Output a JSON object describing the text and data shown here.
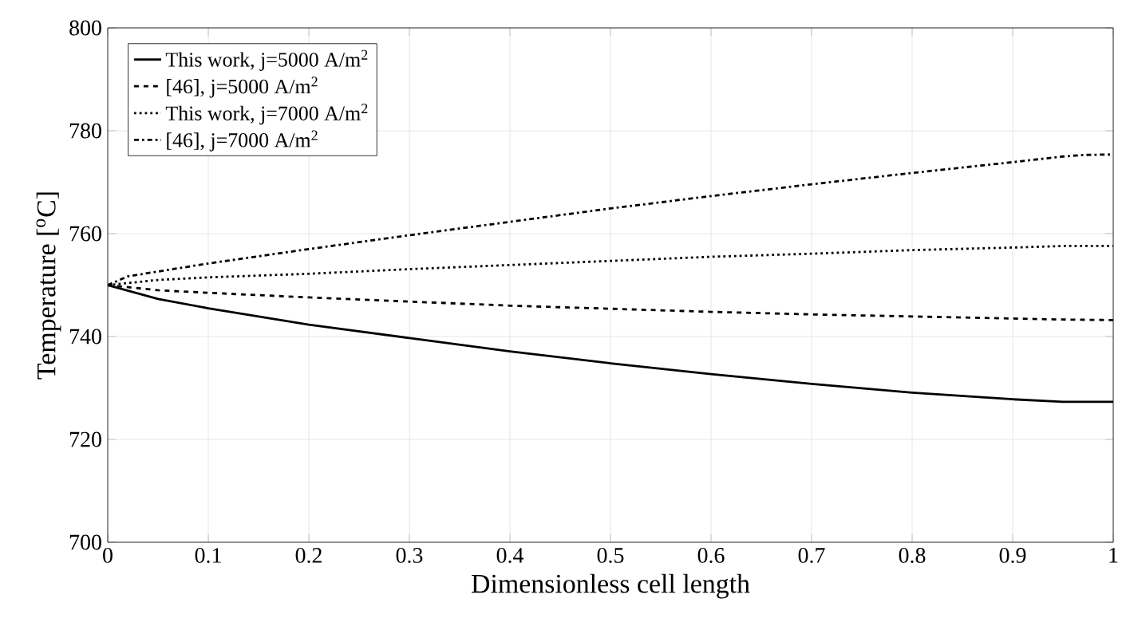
{
  "chart_data": {
    "type": "line",
    "xlabel": "Dimensionless cell length",
    "ylabel": "Temperature [$^{o}$C]",
    "xlim": [
      0,
      1
    ],
    "ylim": [
      700,
      800
    ],
    "xticks": [
      0,
      0.1,
      0.2,
      0.3,
      0.4,
      0.5,
      0.6,
      0.7,
      0.8,
      0.9,
      1
    ],
    "yticks": [
      700,
      720,
      740,
      760,
      780,
      800
    ],
    "grid": true,
    "legend": "top left",
    "x": [
      0,
      0.05,
      0.1,
      0.2,
      0.3,
      0.4,
      0.5,
      0.6,
      0.7,
      0.8,
      0.9,
      0.95,
      1
    ],
    "series": [
      {
        "name": "This work, j=5000 A/m$^{2}$",
        "color": "#000000",
        "line_style": "solid",
        "values": [
          750,
          747.3,
          745.5,
          742.3,
          739.7,
          737.1,
          734.8,
          732.7,
          730.8,
          729.1,
          727.8,
          727.3,
          727.3
        ]
      },
      {
        "name": "[46], j=5000 A/m$^{2}$",
        "color": "#000000",
        "line_style": "dashed",
        "values": [
          750,
          749,
          748.5,
          747.6,
          746.8,
          746.0,
          745.4,
          744.8,
          744.3,
          743.9,
          743.5,
          743.3,
          743.2
        ]
      },
      {
        "name": "This work, j=7000 A/m$^{2}$",
        "color": "#000000",
        "line_style": "dotted",
        "values": [
          750,
          751,
          751.5,
          752.2,
          753.1,
          753.9,
          754.7,
          755.5,
          756.1,
          756.8,
          757.3,
          757.6,
          757.6
        ]
      },
      {
        "name": "[46], j=7000 A/m$^{2}$",
        "color": "#000000",
        "line_style": "dashdot",
        "x": [
          0,
          0.02,
          0.1,
          0.2,
          0.3,
          0.4,
          0.5,
          0.6,
          0.7,
          0.8,
          0.9,
          0.95,
          0.97,
          1
        ],
        "values": [
          750,
          751.7,
          754.2,
          757,
          759.7,
          762.3,
          764.9,
          767.3,
          769.6,
          771.8,
          773.9,
          775,
          775.3,
          775.4
        ]
      }
    ]
  }
}
